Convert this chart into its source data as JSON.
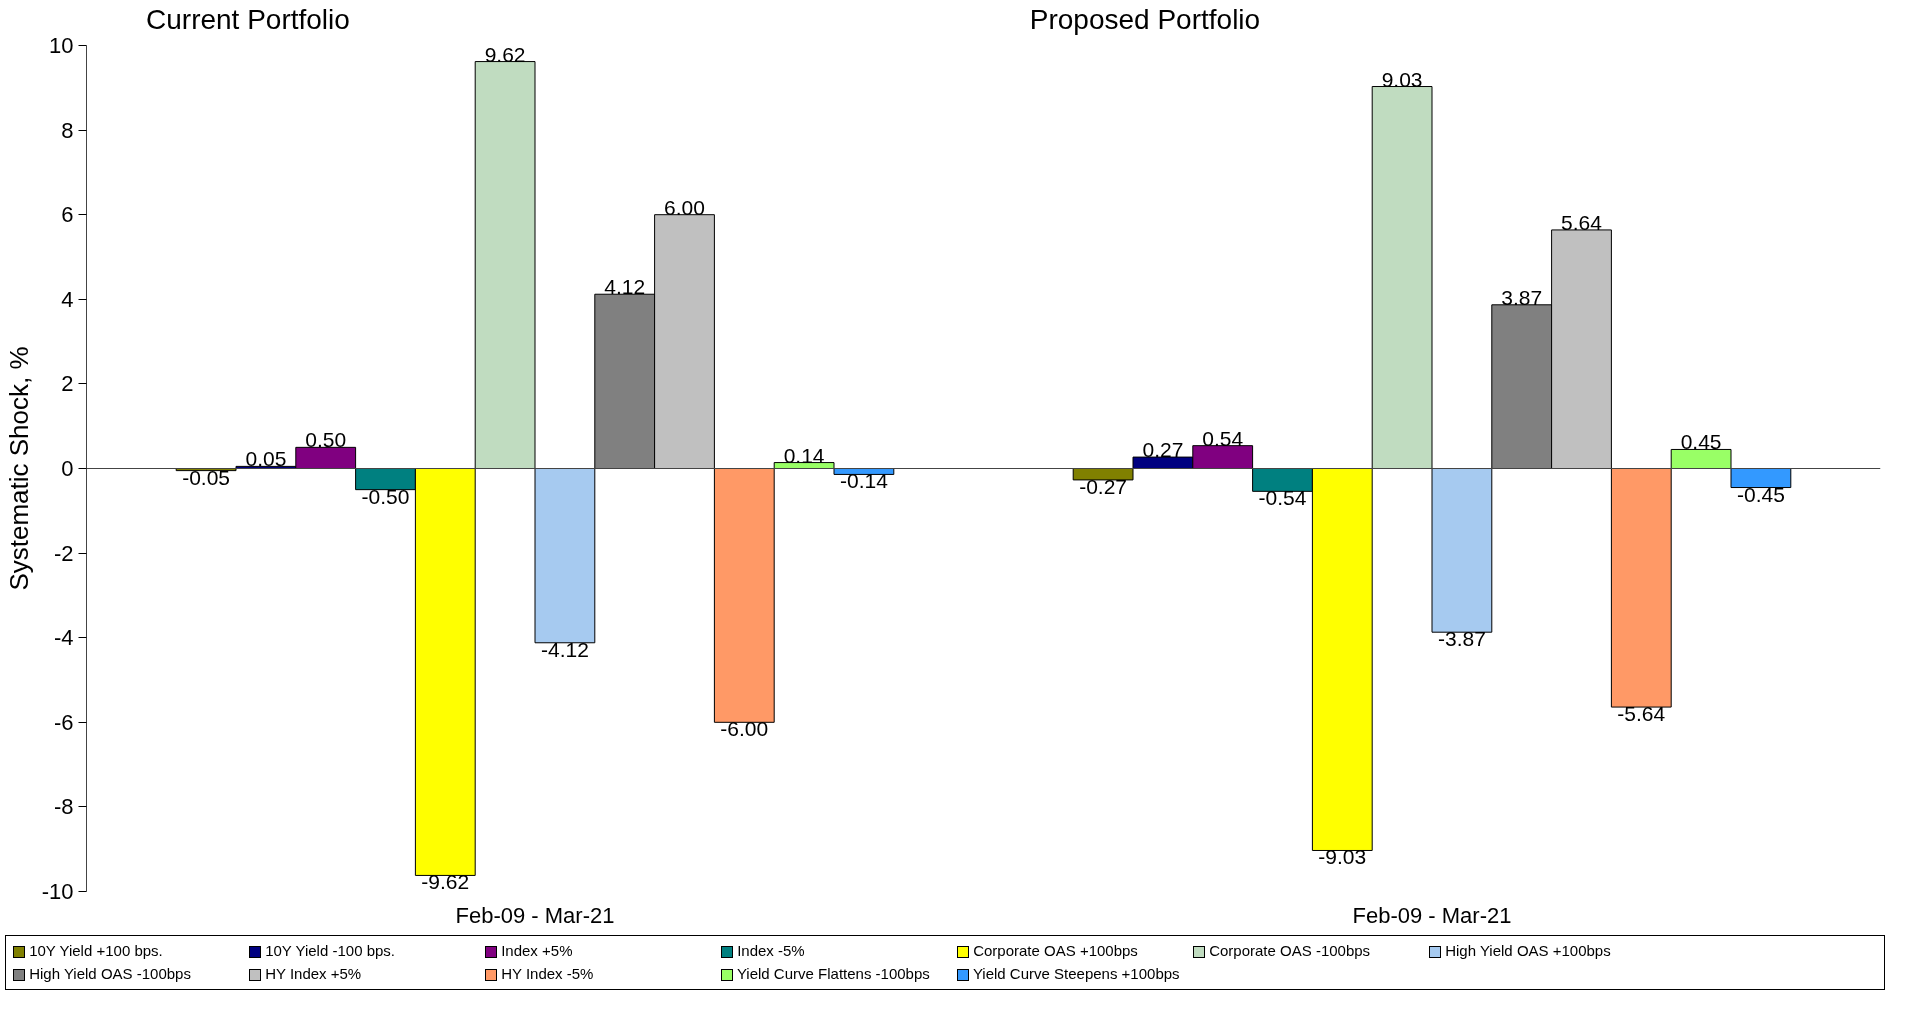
{
  "chart_data": {
    "type": "bar",
    "ylabel": "Systematic Shock, %",
    "categories": [
      "Feb-09 - Mar-21",
      "Feb-09 - Mar-21"
    ],
    "annotations": [
      "Current Portfolio",
      "Proposed Portfolio"
    ],
    "ylim": [
      -10,
      10
    ],
    "yticks": [
      -10,
      -8,
      -6,
      -4,
      -2,
      0,
      2,
      4,
      6,
      8,
      10
    ],
    "grid": false,
    "legend": "bottom",
    "ref_lines": [
      {
        "axis": "y",
        "value": 0
      }
    ],
    "series": [
      {
        "name": "10Y Yield +100 bps.",
        "color": "#808000",
        "values": [
          -0.05,
          -0.27
        ],
        "value_labels": [
          "-0.05",
          "-0.27"
        ]
      },
      {
        "name": "10Y Yield -100 bps.",
        "color": "#000080",
        "values": [
          0.05,
          0.27
        ],
        "value_labels": [
          "0.05",
          "0.27"
        ]
      },
      {
        "name": "Index +5%",
        "color": "#800080",
        "values": [
          0.5,
          0.54
        ],
        "value_labels": [
          "0.50",
          "0.54"
        ]
      },
      {
        "name": "Index -5%",
        "color": "#008080",
        "values": [
          -0.5,
          -0.54
        ],
        "value_labels": [
          "-0.50",
          "-0.54"
        ]
      },
      {
        "name": "Corporate OAS +100bps",
        "color": "#ffff00",
        "values": [
          -9.62,
          -9.03
        ],
        "value_labels": [
          "-9.62",
          "-9.03"
        ]
      },
      {
        "name": "Corporate OAS -100bps",
        "color": "#c0dcc0",
        "values": [
          9.62,
          9.03
        ],
        "value_labels": [
          "9.62",
          "9.03"
        ]
      },
      {
        "name": "High Yield OAS +100bps",
        "color": "#a6caf0",
        "values": [
          -4.12,
          -3.87
        ],
        "value_labels": [
          "-4.12",
          "-3.87"
        ]
      },
      {
        "name": "High Yield OAS -100bps",
        "color": "#808080",
        "values": [
          4.12,
          3.87
        ],
        "value_labels": [
          "4.12",
          "3.87"
        ]
      },
      {
        "name": "HY Index +5%",
        "color": "#c0c0c0",
        "values": [
          6.0,
          5.64
        ],
        "value_labels": [
          "6.00",
          "5.64"
        ]
      },
      {
        "name": "HY Index -5%",
        "color": "#ff9966",
        "values": [
          -6.0,
          -5.64
        ],
        "value_labels": [
          "-6.00",
          "-5.64"
        ]
      },
      {
        "name": "Yield Curve Flattens -100bps",
        "color": "#99ff66",
        "values": [
          0.14,
          0.45
        ],
        "value_labels": [
          "0.14",
          "0.45"
        ]
      },
      {
        "name": "Yield Curve Steepens +100bps",
        "color": "#3399ff",
        "values": [
          -0.14,
          -0.45
        ],
        "value_labels": [
          "-0.14",
          "-0.45"
        ]
      }
    ]
  }
}
